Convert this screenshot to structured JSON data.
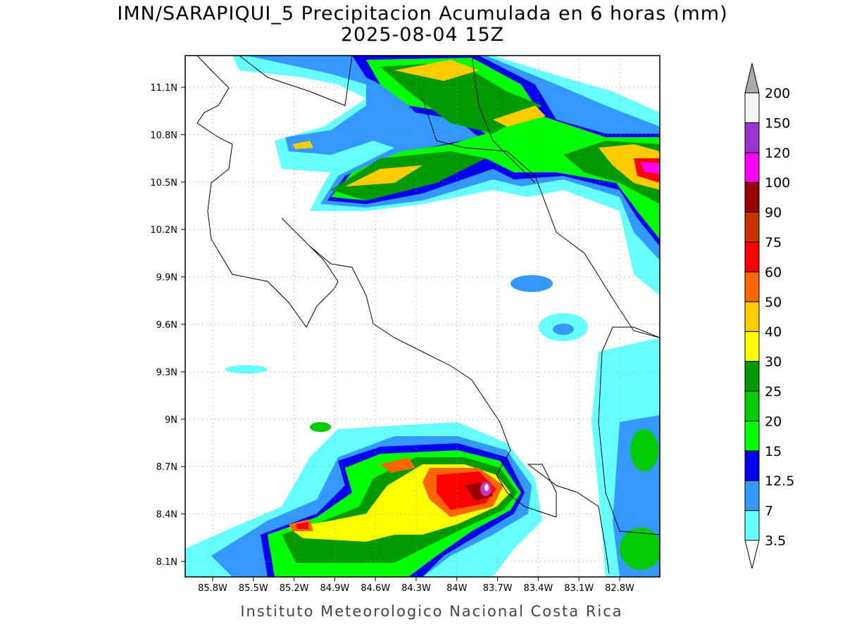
{
  "header": {
    "title": "IMN/SARAPIQUI_5 Precipitacion Acumulada en 6 horas (mm)",
    "subtitle": "2025-08-04 15Z"
  },
  "map": {
    "lat_labels": [
      "11.1N",
      "10.8N",
      "10.5N",
      "10.2N",
      "9.9N",
      "9.6N",
      "9.3N",
      "9N",
      "8.7N",
      "8.4N",
      "8.1N"
    ],
    "lon_labels": [
      "85.8W",
      "85.5W",
      "85.2W",
      "84.9W",
      "84.6W",
      "84.3W",
      "84W",
      "83.7W",
      "83.4W",
      "83.1W",
      "82.8W"
    ]
  },
  "colorbar": {
    "labels": [
      "3.5",
      "7",
      "12.5",
      "15",
      "20",
      "25",
      "30",
      "40",
      "50",
      "60",
      "75",
      "90",
      "100",
      "120",
      "150",
      "200"
    ],
    "colors": [
      "#66ffff",
      "#3399ff",
      "#0000ee",
      "#00ff00",
      "#00cc00",
      "#009900",
      "#ffff00",
      "#ffcc00",
      "#ff6600",
      "#ff0000",
      "#cc3300",
      "#990000",
      "#ff00ff",
      "#9933cc",
      "#f5f5f5"
    ]
  },
  "footer": "Instituto Meteorologico Nacional Costa Rica"
}
